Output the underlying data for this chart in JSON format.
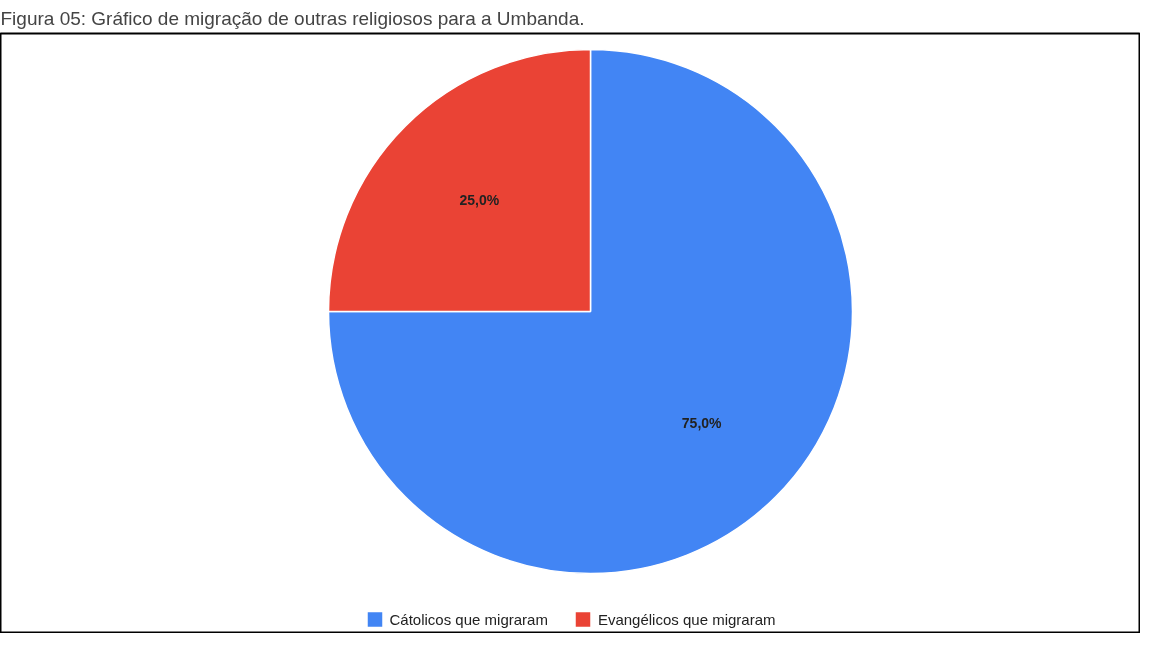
{
  "chart_data": {
    "type": "pie",
    "title": "Figura 05: Gráfico de migração de outras religiosos para a Umbanda.",
    "categories": [
      "Cátolicos que migraram",
      "Evangélicos que migraram"
    ],
    "values": [
      75,
      25
    ],
    "colors": [
      "#4285f4",
      "#ea4335"
    ],
    "value_labels": [
      "75,0%",
      "25,0%"
    ],
    "legend": "bottom"
  }
}
